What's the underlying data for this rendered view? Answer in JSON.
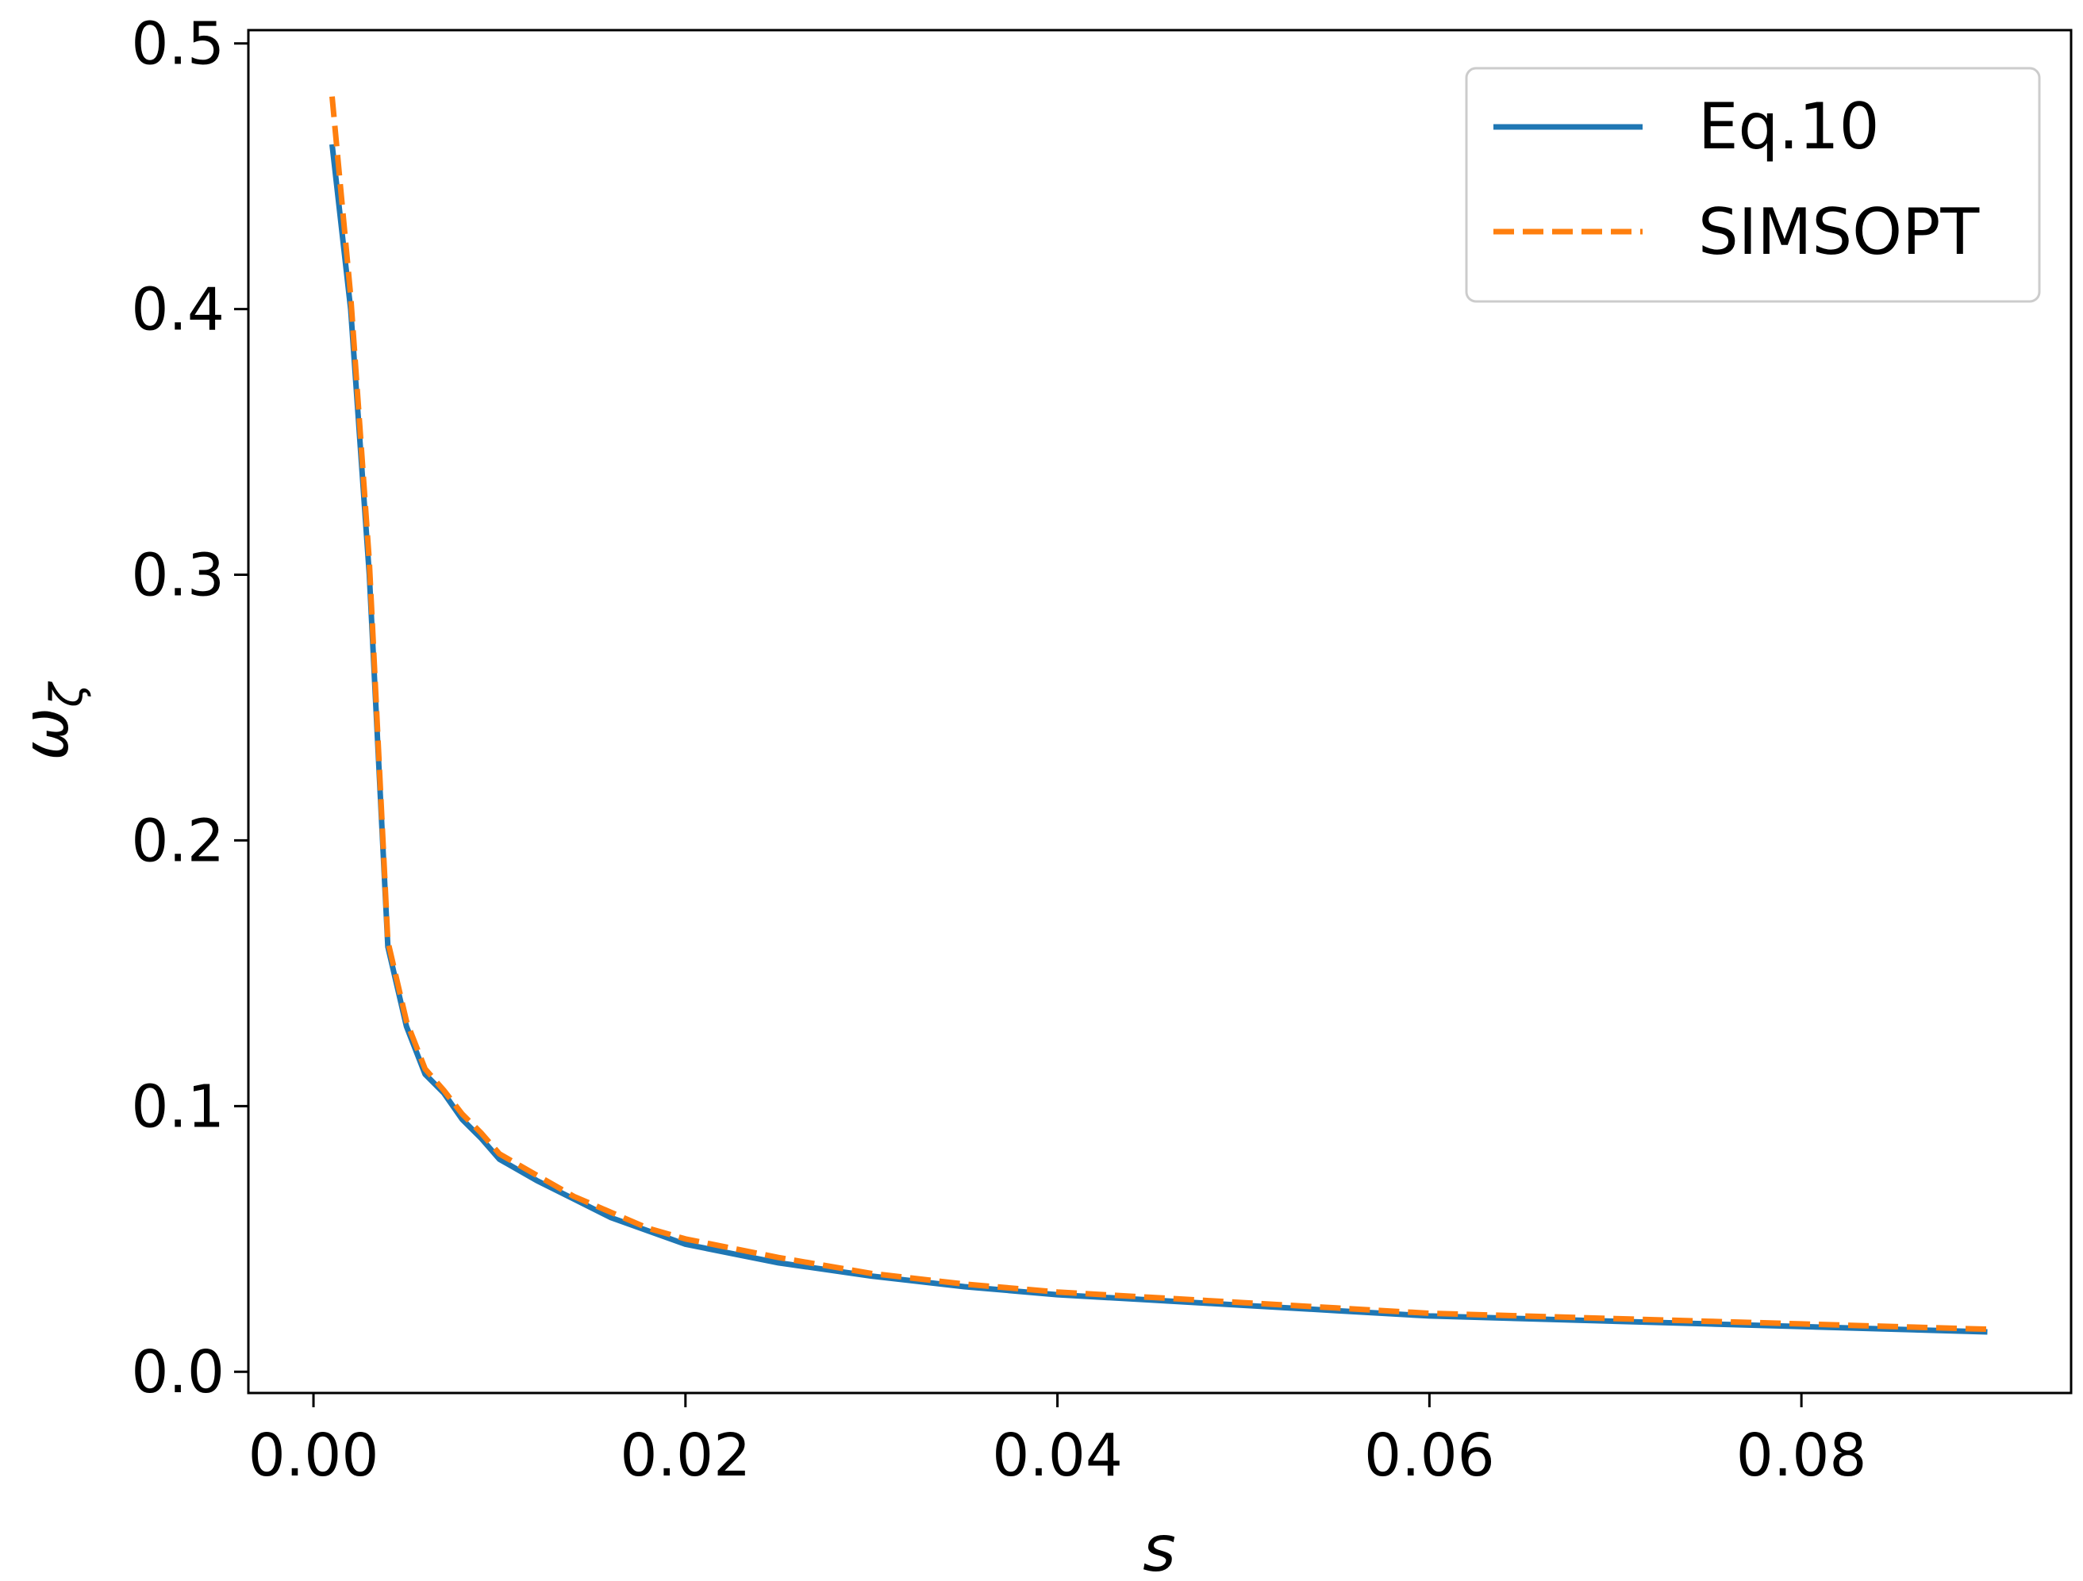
{
  "chart_data": {
    "type": "line",
    "title": "",
    "xlabel": "s",
    "ylabel": "ω",
    "ylabel_sub": "ζ",
    "xlim": [
      -0.0035,
      0.0945
    ],
    "ylim": [
      -0.008,
      0.505
    ],
    "x_ticks": [
      0.0,
      0.02,
      0.04,
      0.06,
      0.08
    ],
    "x_tick_labels": [
      "0.00",
      "0.02",
      "0.04",
      "0.06",
      "0.08"
    ],
    "y_ticks": [
      0.0,
      0.1,
      0.2,
      0.3,
      0.4,
      0.5
    ],
    "y_tick_labels": [
      "0.0",
      "0.1",
      "0.2",
      "0.3",
      "0.4",
      "0.5"
    ],
    "grid": false,
    "legend_position": "top-right",
    "series": [
      {
        "name": "Eq.10",
        "color": "#1f77b4",
        "style": "solid",
        "x": [
          0.001,
          0.002,
          0.003,
          0.004,
          0.005,
          0.006,
          0.007,
          0.008,
          0.009,
          0.01,
          0.012,
          0.014,
          0.016,
          0.018,
          0.02,
          0.025,
          0.03,
          0.035,
          0.04,
          0.045,
          0.05,
          0.055,
          0.06,
          0.065,
          0.07,
          0.075,
          0.08,
          0.085,
          0.09
        ],
        "y": [
          0.462,
          0.4,
          0.3,
          0.16,
          0.13,
          0.112,
          0.105,
          0.095,
          0.088,
          0.08,
          0.072,
          0.065,
          0.058,
          0.053,
          0.048,
          0.041,
          0.036,
          0.032,
          0.029,
          0.027,
          0.025,
          0.023,
          0.021,
          0.02,
          0.019,
          0.018,
          0.017,
          0.016,
          0.015
        ]
      },
      {
        "name": "SIMSOPT",
        "color": "#ff7f0e",
        "style": "dashed",
        "x": [
          0.001,
          0.002,
          0.003,
          0.004,
          0.005,
          0.006,
          0.007,
          0.008,
          0.009,
          0.01,
          0.012,
          0.014,
          0.016,
          0.018,
          0.02,
          0.025,
          0.03,
          0.035,
          0.04,
          0.045,
          0.05,
          0.055,
          0.06,
          0.065,
          0.07,
          0.075,
          0.08,
          0.085,
          0.09
        ],
        "y": [
          0.48,
          0.405,
          0.305,
          0.162,
          0.132,
          0.114,
          0.106,
          0.097,
          0.09,
          0.082,
          0.074,
          0.066,
          0.06,
          0.054,
          0.05,
          0.043,
          0.037,
          0.033,
          0.03,
          0.028,
          0.026,
          0.024,
          0.022,
          0.021,
          0.02,
          0.019,
          0.018,
          0.017,
          0.016
        ]
      }
    ]
  }
}
